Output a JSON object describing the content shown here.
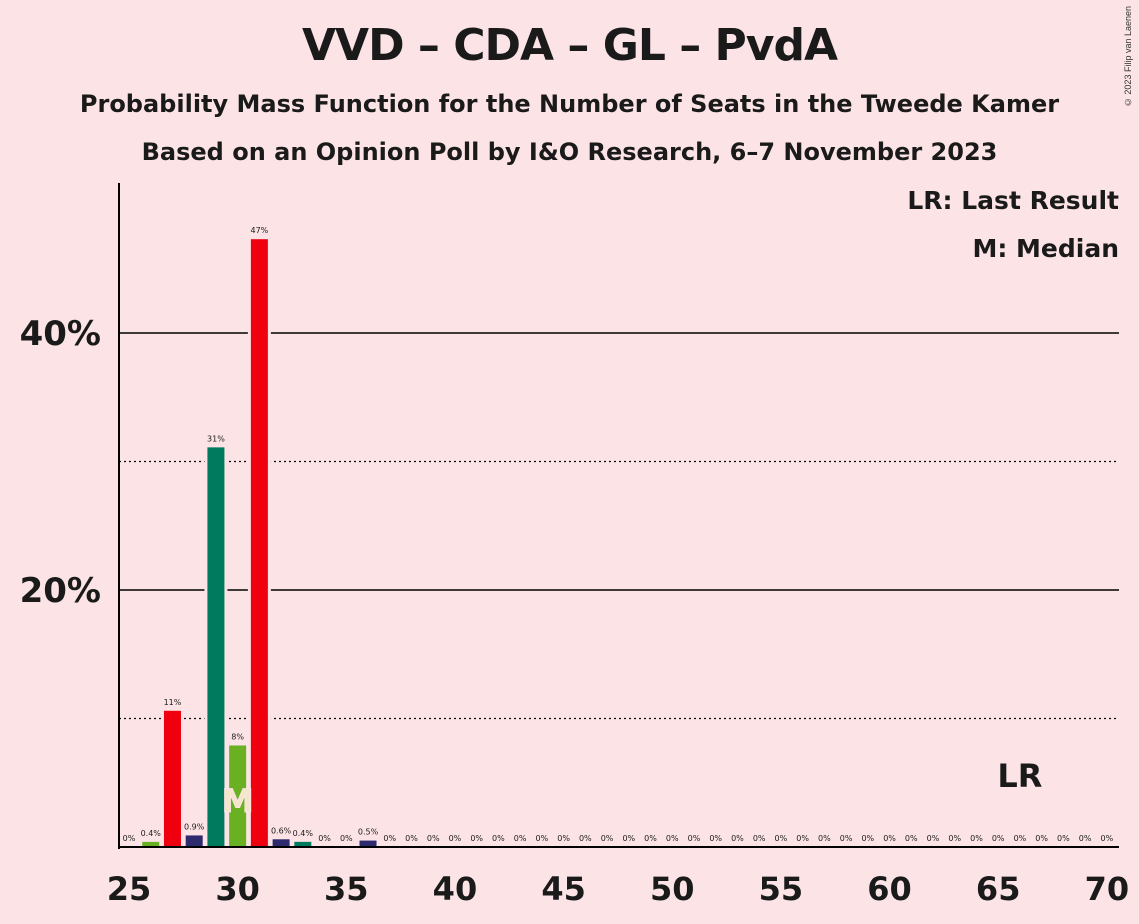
{
  "title": "VVD – CDA – GL – PvdA",
  "subtitle_1": "Probability Mass Function for the Number of Seats in the Tweede Kamer",
  "subtitle_2": "Based on an Opinion Poll by I&O Research, 6–7 November 2023",
  "copyright": "© 2023 Filip van Laenen",
  "legend": {
    "last_result": "LR: Last Result",
    "median": "M: Median"
  },
  "colors": {
    "background": "#fce4e6",
    "red": "#f0000e",
    "green": "#007a5e",
    "lime": "#6ab023",
    "navy": "#2d2a6e"
  },
  "chart_data": {
    "type": "bar",
    "xlim": [
      25,
      70
    ],
    "ylim": [
      0,
      50
    ],
    "x_ticks": [
      25,
      30,
      35,
      40,
      45,
      50,
      55,
      60,
      65,
      70
    ],
    "y_ticks": [
      {
        "value": 20,
        "label": "20%"
      },
      {
        "value": 40,
        "label": "40%"
      }
    ],
    "y_dotted": [
      10,
      30
    ],
    "median_seat": 30,
    "median_marker": "M",
    "last_result_seat": 66,
    "last_result_marker": "LR",
    "bars": [
      {
        "seat": 25,
        "value": 0,
        "label": "0%",
        "color": "red"
      },
      {
        "seat": 26,
        "value": 0.4,
        "label": "0.4%",
        "color": "lime"
      },
      {
        "seat": 27,
        "value": 10.6,
        "label": "11%",
        "color": "red"
      },
      {
        "seat": 28,
        "value": 0.9,
        "label": "0.9%",
        "color": "navy"
      },
      {
        "seat": 29,
        "value": 31.1,
        "label": "31%",
        "color": "green"
      },
      {
        "seat": 30,
        "value": 7.9,
        "label": "8%",
        "color": "lime"
      },
      {
        "seat": 31,
        "value": 47.3,
        "label": "47%",
        "color": "red"
      },
      {
        "seat": 32,
        "value": 0.6,
        "label": "0.6%",
        "color": "navy"
      },
      {
        "seat": 33,
        "value": 0.4,
        "label": "0.4%",
        "color": "green"
      },
      {
        "seat": 34,
        "value": 0,
        "label": "0%",
        "color": "red"
      },
      {
        "seat": 35,
        "value": 0,
        "label": "0%",
        "color": "red"
      },
      {
        "seat": 36,
        "value": 0.5,
        "label": "0.5%",
        "color": "navy"
      },
      {
        "seat": 37,
        "value": 0,
        "label": "0%",
        "color": "red"
      },
      {
        "seat": 38,
        "value": 0,
        "label": "0%",
        "color": "red"
      },
      {
        "seat": 39,
        "value": 0,
        "label": "0%",
        "color": "red"
      },
      {
        "seat": 40,
        "value": 0,
        "label": "0%",
        "color": "red"
      },
      {
        "seat": 41,
        "value": 0,
        "label": "0%",
        "color": "red"
      },
      {
        "seat": 42,
        "value": 0,
        "label": "0%",
        "color": "red"
      },
      {
        "seat": 43,
        "value": 0,
        "label": "0%",
        "color": "red"
      },
      {
        "seat": 44,
        "value": 0,
        "label": "0%",
        "color": "red"
      },
      {
        "seat": 45,
        "value": 0,
        "label": "0%",
        "color": "red"
      },
      {
        "seat": 46,
        "value": 0,
        "label": "0%",
        "color": "red"
      },
      {
        "seat": 47,
        "value": 0,
        "label": "0%",
        "color": "red"
      },
      {
        "seat": 48,
        "value": 0,
        "label": "0%",
        "color": "red"
      },
      {
        "seat": 49,
        "value": 0,
        "label": "0%",
        "color": "red"
      },
      {
        "seat": 50,
        "value": 0,
        "label": "0%",
        "color": "red"
      },
      {
        "seat": 51,
        "value": 0,
        "label": "0%",
        "color": "red"
      },
      {
        "seat": 52,
        "value": 0,
        "label": "0%",
        "color": "red"
      },
      {
        "seat": 53,
        "value": 0,
        "label": "0%",
        "color": "red"
      },
      {
        "seat": 54,
        "value": 0,
        "label": "0%",
        "color": "red"
      },
      {
        "seat": 55,
        "value": 0,
        "label": "0%",
        "color": "red"
      },
      {
        "seat": 56,
        "value": 0,
        "label": "0%",
        "color": "red"
      },
      {
        "seat": 57,
        "value": 0,
        "label": "0%",
        "color": "red"
      },
      {
        "seat": 58,
        "value": 0,
        "label": "0%",
        "color": "red"
      },
      {
        "seat": 59,
        "value": 0,
        "label": "0%",
        "color": "red"
      },
      {
        "seat": 60,
        "value": 0,
        "label": "0%",
        "color": "red"
      },
      {
        "seat": 61,
        "value": 0,
        "label": "0%",
        "color": "red"
      },
      {
        "seat": 62,
        "value": 0,
        "label": "0%",
        "color": "red"
      },
      {
        "seat": 63,
        "value": 0,
        "label": "0%",
        "color": "red"
      },
      {
        "seat": 64,
        "value": 0,
        "label": "0%",
        "color": "red"
      },
      {
        "seat": 65,
        "value": 0,
        "label": "0%",
        "color": "red"
      },
      {
        "seat": 66,
        "value": 0,
        "label": "0%",
        "color": "red"
      },
      {
        "seat": 67,
        "value": 0,
        "label": "0%",
        "color": "red"
      },
      {
        "seat": 68,
        "value": 0,
        "label": "0%",
        "color": "red"
      },
      {
        "seat": 69,
        "value": 0,
        "label": "0%",
        "color": "red"
      },
      {
        "seat": 70,
        "value": 0,
        "label": "0%",
        "color": "red"
      }
    ]
  }
}
